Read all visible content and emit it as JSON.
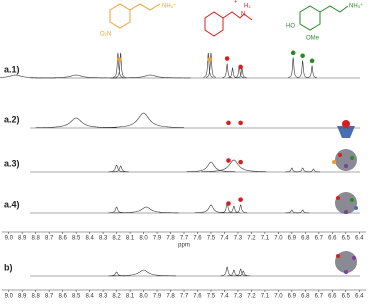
{
  "chart_data": {
    "type": "spectra",
    "xlabel": "ppm",
    "xlim": [
      9.05,
      6.35
    ],
    "xticks": [
      {
        "value": 9.0,
        "label": "9.0"
      },
      {
        "value": 8.9,
        "label": "8.9"
      },
      {
        "value": 8.8,
        "label": "8.8"
      },
      {
        "value": 8.7,
        "label": "8.7"
      },
      {
        "value": 8.6,
        "label": "8.6"
      },
      {
        "value": 8.5,
        "label": "8.5"
      },
      {
        "value": 8.4,
        "label": "8.4"
      },
      {
        "value": 8.3,
        "label": "8.3"
      },
      {
        "value": 8.2,
        "label": "8.2"
      },
      {
        "value": 8.1,
        "label": "8.1"
      },
      {
        "value": 8.0,
        "label": "8.0"
      },
      {
        "value": 7.9,
        "label": "7.9"
      },
      {
        "value": 7.8,
        "label": "7.8"
      },
      {
        "value": 7.7,
        "label": "7.7"
      },
      {
        "value": 7.6,
        "label": "7.6"
      },
      {
        "value": 7.5,
        "label": "7.5"
      },
      {
        "value": 7.4,
        "label": "7.4"
      },
      {
        "value": 7.3,
        "label": "7.3"
      },
      {
        "value": 7.2,
        "label": "7.2"
      },
      {
        "value": 7.1,
        "label": "7.1"
      },
      {
        "value": 7.0,
        "label": "7.0"
      },
      {
        "value": 6.9,
        "label": "6.9"
      },
      {
        "value": 6.8,
        "label": "6.8"
      },
      {
        "value": 6.7,
        "label": "6.7"
      },
      {
        "value": 6.6,
        "label": "6.6"
      },
      {
        "value": 6.5,
        "label": "6.5"
      },
      {
        "value": 6.4,
        "label": "6.4"
      }
    ],
    "molecules": [
      {
        "color": "#f0a030",
        "labels": [
          "O₂N",
          "NH₃⁺"
        ]
      },
      {
        "color": "#d42020",
        "labels": [
          "H₂",
          "N",
          "+"
        ]
      },
      {
        "color": "#2a8a2a",
        "labels": [
          "HO",
          "OMe",
          "NH₃⁺"
        ]
      }
    ],
    "panels": [
      {
        "label": "a.1)",
        "peaks": [
          8.95,
          8.5,
          8.19,
          8.17,
          7.95,
          7.52,
          7.5,
          7.38,
          7.34,
          7.29,
          7.27,
          6.89,
          6.82,
          6.75
        ],
        "heights": [
          3,
          3,
          25,
          25,
          3,
          25,
          25,
          14,
          10,
          12,
          10,
          20,
          17,
          12
        ],
        "widths": [
          0.05,
          0.05,
          0.006,
          0.006,
          0.05,
          0.006,
          0.006,
          0.006,
          0.006,
          0.006,
          0.006,
          0.006,
          0.006,
          0.006
        ],
        "markers": [
          {
            "color": "#f0a030",
            "ppm": [
              8.18,
              7.51
            ]
          },
          {
            "color": "#d42020",
            "ppm": [
              7.38,
              7.28
            ]
          },
          {
            "color": "#2a8a2a",
            "ppm": [
              6.89,
              6.82,
              6.75
            ]
          }
        ]
      },
      {
        "label": "a.2)",
        "peaks": [
          8.5,
          8.0
        ],
        "heights": [
          10,
          15
        ],
        "widths": [
          0.05,
          0.05
        ],
        "markers": [
          {
            "color": "#d42020",
            "ppm": [
              7.37,
              7.28
            ]
          }
        ]
      },
      {
        "label": "a.3)",
        "peaks": [
          8.2,
          8.17,
          7.5,
          7.33,
          6.9,
          6.82,
          6.74
        ],
        "heights": [
          7,
          6,
          10,
          12,
          4,
          4,
          3
        ],
        "widths": [
          0.01,
          0.01,
          0.03,
          0.04,
          0.008,
          0.008,
          0.008
        ],
        "markers": [
          {
            "color": "#d42020",
            "ppm": [
              7.37,
              7.28
            ]
          }
        ]
      },
      {
        "label": "a.4)",
        "peaks": [
          8.2,
          7.98,
          7.5,
          7.38,
          7.33,
          7.28,
          6.9,
          6.82
        ],
        "heights": [
          6,
          6,
          8,
          10,
          7,
          8,
          3,
          3
        ],
        "widths": [
          0.01,
          0.04,
          0.02,
          0.008,
          0.008,
          0.008,
          0.008,
          0.008
        ],
        "markers": [
          {
            "color": "#d42020",
            "ppm": [
              7.37,
              7.28
            ]
          }
        ]
      },
      {
        "label": "b)",
        "peaks": [
          8.2,
          8.0,
          7.38,
          7.33,
          7.28,
          7.26
        ],
        "heights": [
          4,
          6,
          9,
          6,
          7,
          5
        ],
        "widths": [
          0.01,
          0.04,
          0.008,
          0.008,
          0.008,
          0.008
        ],
        "markers": []
      }
    ]
  }
}
